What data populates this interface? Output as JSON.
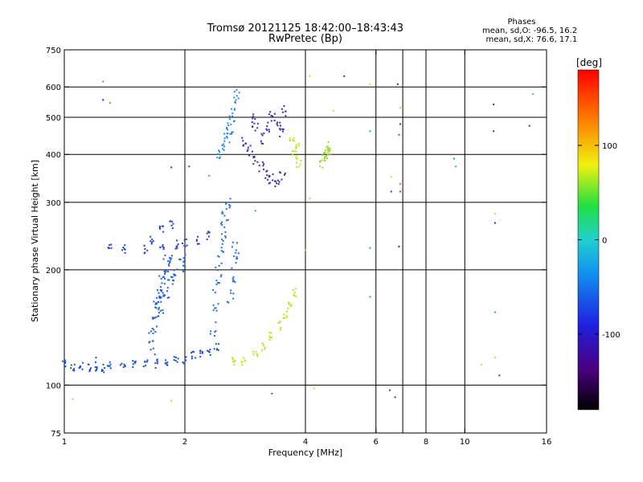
{
  "header": {
    "title_line1": "Tromsø 20121125 18:42:00–18:43:43",
    "title_line2": "RwPretec (Bp)"
  },
  "phases": {
    "heading": "Phases",
    "line_o": "mean, sd,O: -96.5, 16.2",
    "line_x": "mean, sd,X: 76.6, 17.1"
  },
  "chart_data": {
    "type": "scatter",
    "xlabel": "Frequency [MHz]",
    "ylabel": "Stationary phase Virtual Height [km]",
    "x_scale": "log2",
    "y_scale": "log",
    "xlim": [
      1,
      16
    ],
    "ylim": [
      75,
      750
    ],
    "x_ticks": [
      1,
      2,
      4,
      6,
      8,
      10,
      16
    ],
    "x_tick_labels": [
      "1",
      "2",
      "4",
      "6",
      "8",
      "10",
      "16"
    ],
    "x_grid": [
      2,
      4,
      6,
      7,
      8,
      10
    ],
    "y_ticks": [
      75,
      100,
      200,
      300,
      400,
      500,
      600,
      750
    ],
    "y_tick_labels": [
      "75",
      "100",
      "200",
      "300",
      "400",
      "500",
      "600",
      "750"
    ],
    "y_grid": [
      100,
      200,
      300,
      400,
      500,
      600
    ],
    "colorbar": {
      "label": "[deg]",
      "range": [
        -180,
        180
      ],
      "ticks": [
        -100,
        0,
        100
      ],
      "tick_labels": [
        "-100",
        "0",
        "100"
      ]
    },
    "series": [
      {
        "name": "",
        "color": "#1450e0",
        "jitter": 0.02,
        "points": [
          [
            1.0,
            113
          ],
          [
            1.05,
            111
          ],
          [
            1.1,
            112
          ],
          [
            1.15,
            111
          ],
          [
            1.2,
            112
          ],
          [
            1.25,
            111
          ],
          [
            1.3,
            112
          ],
          [
            1.4,
            112
          ],
          [
            1.5,
            113
          ],
          [
            1.6,
            113
          ],
          [
            1.7,
            114
          ],
          [
            1.8,
            115
          ],
          [
            1.9,
            116
          ],
          [
            2.0,
            117
          ],
          [
            2.1,
            119
          ],
          [
            2.2,
            121
          ],
          [
            2.3,
            123
          ],
          [
            2.4,
            125
          ]
        ]
      },
      {
        "name": "",
        "color": "#1a5ee6",
        "jitter": 0.03,
        "points": [
          [
            1.65,
            125
          ],
          [
            1.66,
            135
          ],
          [
            1.68,
            145
          ],
          [
            1.7,
            155
          ],
          [
            1.72,
            165
          ],
          [
            1.74,
            175
          ],
          [
            1.76,
            185
          ],
          [
            1.78,
            195
          ],
          [
            1.8,
            205
          ],
          [
            1.82,
            215
          ],
          [
            1.7,
            170
          ],
          [
            1.75,
            160
          ],
          [
            1.8,
            175
          ],
          [
            1.85,
            185
          ],
          [
            1.9,
            195
          ],
          [
            1.95,
            205
          ],
          [
            2.0,
            212
          ]
        ]
      },
      {
        "name": "",
        "color": "#2040d8",
        "jitter": 0.02,
        "points": [
          [
            1.3,
            228
          ],
          [
            1.4,
            226
          ],
          [
            1.6,
            227
          ],
          [
            1.75,
            230
          ],
          [
            1.9,
            233
          ],
          [
            2.0,
            236
          ],
          [
            2.15,
            240
          ],
          [
            2.3,
            245
          ],
          [
            1.65,
            240
          ],
          [
            1.75,
            255
          ],
          [
            1.85,
            262
          ]
        ]
      },
      {
        "name": "",
        "color": "#1c6ef0",
        "jitter": 0.03,
        "points": [
          [
            2.35,
            140
          ],
          [
            2.38,
            160
          ],
          [
            2.4,
            180
          ],
          [
            2.42,
            200
          ],
          [
            2.45,
            220
          ],
          [
            2.48,
            240
          ],
          [
            2.5,
            260
          ],
          [
            2.52,
            280
          ],
          [
            2.55,
            300
          ],
          [
            2.6,
            170
          ],
          [
            2.62,
            190
          ],
          [
            2.65,
            210
          ],
          [
            2.68,
            230
          ]
        ]
      },
      {
        "name": "",
        "color": "#2088f0",
        "jitter": 0.025,
        "points": [
          [
            2.45,
            400
          ],
          [
            2.5,
            420
          ],
          [
            2.55,
            440
          ],
          [
            2.6,
            470
          ],
          [
            2.63,
            500
          ],
          [
            2.66,
            540
          ],
          [
            2.7,
            580
          ],
          [
            2.58,
            460
          ]
        ]
      },
      {
        "name": "",
        "color": "#3a2ab8",
        "jitter": 0.025,
        "points": [
          [
            2.8,
            430
          ],
          [
            2.9,
            410
          ],
          [
            3.0,
            390
          ],
          [
            3.1,
            370
          ],
          [
            3.2,
            355
          ],
          [
            3.3,
            345
          ],
          [
            3.4,
            340
          ],
          [
            3.5,
            350
          ],
          [
            3.1,
            440
          ],
          [
            3.2,
            470
          ],
          [
            3.3,
            500
          ],
          [
            3.4,
            480
          ],
          [
            3.5,
            460
          ],
          [
            3.55,
            520
          ],
          [
            3.0,
            470
          ],
          [
            2.95,
            500
          ]
        ]
      },
      {
        "name": "",
        "color": "#c8e01a",
        "jitter": 0.02,
        "points": [
          [
            2.65,
            115
          ],
          [
            2.8,
            116
          ],
          [
            3.0,
            120
          ],
          [
            3.15,
            126
          ],
          [
            3.3,
            134
          ],
          [
            3.45,
            143
          ],
          [
            3.55,
            152
          ],
          [
            3.65,
            162
          ],
          [
            3.75,
            175
          ],
          [
            3.8,
            420
          ],
          [
            3.75,
            400
          ],
          [
            3.7,
            440
          ],
          [
            3.85,
            380
          ]
        ]
      },
      {
        "name": "",
        "color": "#9adc28",
        "jitter": 0.02,
        "points": [
          [
            4.4,
            380
          ],
          [
            4.5,
            395
          ],
          [
            4.6,
            410
          ],
          [
            4.55,
            420
          ],
          [
            4.45,
            400
          ]
        ]
      }
    ],
    "isolated_points": [
      [
        1.25,
        555,
        "#3020b0"
      ],
      [
        1.3,
        545,
        "#30c040"
      ],
      [
        1.25,
        620,
        "#20a0e0"
      ],
      [
        1.05,
        92,
        "#c8e01a"
      ],
      [
        1.85,
        91,
        "#c8e01a"
      ],
      [
        1.85,
        370,
        "#2040d8"
      ],
      [
        2.05,
        372,
        "#2040d8"
      ],
      [
        2.3,
        352,
        "#20a0e0"
      ],
      [
        3.0,
        285,
        "#30c040"
      ],
      [
        3.3,
        95,
        "#e03020"
      ],
      [
        4.1,
        640,
        "#c8e01a"
      ],
      [
        4.0,
        225,
        "#c8e01a"
      ],
      [
        4.7,
        520,
        "#f0d020"
      ],
      [
        5.0,
        640,
        "#1040c0"
      ],
      [
        5.8,
        610,
        "#c8e01a"
      ],
      [
        5.8,
        460,
        "#20a0e0"
      ],
      [
        5.8,
        228,
        "#20a0e0"
      ],
      [
        5.8,
        170,
        "#20a0e0"
      ],
      [
        6.5,
        97,
        "#1050d0"
      ],
      [
        6.7,
        93,
        "#2040d8"
      ],
      [
        6.55,
        350,
        "#f0d020"
      ],
      [
        6.55,
        320,
        "#1040c0"
      ],
      [
        6.9,
        335,
        "#f08020"
      ],
      [
        6.9,
        320,
        "#e03020"
      ],
      [
        6.85,
        230,
        "#3020b0"
      ],
      [
        6.9,
        530,
        "#c8e01a"
      ],
      [
        6.9,
        480,
        "#1040c0"
      ],
      [
        6.85,
        450,
        "#e03020"
      ],
      [
        6.8,
        610,
        "#1040c0"
      ],
      [
        7.0,
        605,
        "#30c040"
      ],
      [
        9.4,
        390,
        "#20a0e0"
      ],
      [
        9.5,
        372,
        "#20a0e0"
      ],
      [
        11.0,
        113,
        "#c8e01a"
      ],
      [
        11.8,
        540,
        "#1040c0"
      ],
      [
        11.8,
        460,
        "#1040c0"
      ],
      [
        11.9,
        280,
        "#c8e01a"
      ],
      [
        11.9,
        265,
        "#1040c0"
      ],
      [
        11.9,
        155,
        "#20a0e0"
      ],
      [
        11.9,
        118,
        "#c8e01a"
      ],
      [
        12.2,
        106,
        "#1040c0"
      ],
      [
        14.8,
        575,
        "#20c8d0"
      ],
      [
        14.5,
        475,
        "#1040c0"
      ],
      [
        4.1,
        307,
        "#c8e01a"
      ],
      [
        4.2,
        98,
        "#f0d020"
      ],
      [
        1.2,
        118,
        "#2040d8"
      ]
    ]
  }
}
